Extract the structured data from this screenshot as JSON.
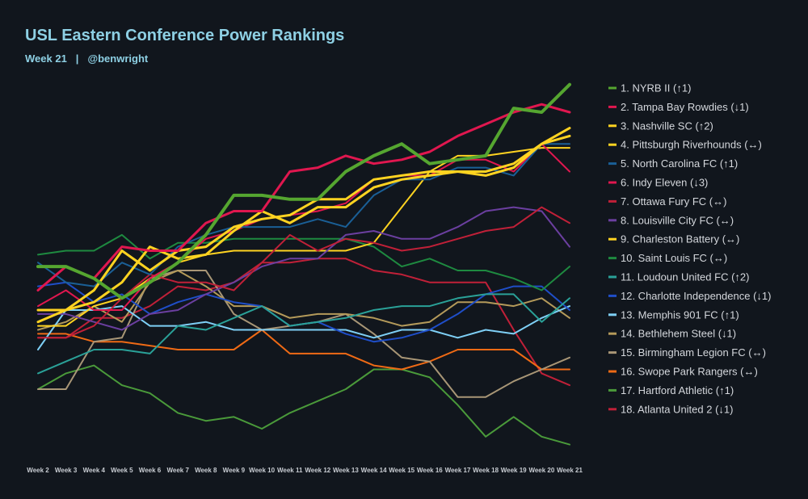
{
  "header": {
    "title": "USL Eastern Conference Power Rankings",
    "week": "Week 21",
    "separator": "|",
    "author": "@benwright"
  },
  "chart_data": {
    "type": "line",
    "title": "USL Eastern Conference Power Rankings",
    "subtitle": "Week 21 | @benwright",
    "xlabel": "",
    "ylabel": "",
    "grid": false,
    "legend_position": "right",
    "categories": [
      "Week 2",
      "Week 3",
      "Week 4",
      "Week 5",
      "Week 6",
      "Week 7",
      "Week 8",
      "Week 9",
      "Week 10",
      "Week 11",
      "Week 12",
      "Week 13",
      "Week 14",
      "Week 15",
      "Week 16",
      "Week 17",
      "Week 18",
      "Week 19",
      "Week 20",
      "Week 21"
    ],
    "ylim": [
      0,
      100
    ],
    "series": [
      {
        "name": "1. NYRB II (↑1)",
        "color": "#55a630",
        "highlight": true,
        "values": [
          51,
          51,
          48,
          43,
          47,
          52,
          59,
          69,
          69,
          68,
          68,
          75,
          79,
          82,
          77,
          78,
          79,
          91,
          90,
          97
        ]
      },
      {
        "name": "2. Tampa Bay Rowdies (↓1)",
        "color": "#e0174f",
        "highlight": true,
        "values": [
          45,
          51,
          48,
          56,
          55,
          55,
          62,
          65,
          65,
          75,
          76,
          79,
          77,
          78,
          80,
          84,
          87,
          90,
          92,
          90
        ]
      },
      {
        "name": "3. Nashville SC (↑2)",
        "color": "#ffd321",
        "highlight": true,
        "values": [
          40,
          40,
          45,
          55,
          50,
          55,
          56,
          61,
          63,
          64,
          68,
          68,
          73,
          74,
          75,
          75,
          75,
          77,
          82,
          86
        ]
      },
      {
        "name": "4. Pittsburgh Riverhounds (↔)",
        "color": "#ffd321",
        "highlight": true,
        "values": [
          37,
          40,
          42,
          47,
          56,
          53,
          54,
          60,
          65,
          62,
          66,
          66,
          71,
          73,
          74,
          75,
          74,
          76,
          82,
          84
        ]
      },
      {
        "name": "5. North Carolina FC (↑1)",
        "color": "#1a5f96",
        "highlight": false,
        "values": [
          52,
          47,
          46,
          52,
          49,
          56,
          59,
          61,
          61,
          61,
          63,
          61,
          69,
          73,
          73,
          76,
          76,
          74,
          82,
          82
        ]
      },
      {
        "name": "6. Indy Eleven (↓3)",
        "color": "#e0174f",
        "highlight": false,
        "values": [
          41,
          45,
          40,
          40,
          48,
          52,
          58,
          60,
          63,
          64,
          65,
          67,
          73,
          74,
          74,
          78,
          78,
          75,
          82,
          75
        ]
      },
      {
        "name": "7. Ottawa Fury FC (↔)",
        "color": "#c02038",
        "highlight": false,
        "values": [
          33,
          33,
          36,
          43,
          49,
          47,
          47,
          45,
          52,
          59,
          55,
          58,
          57,
          55,
          56,
          58,
          60,
          61,
          66,
          62
        ]
      },
      {
        "name": "8. Louisville City FC (↔)",
        "color": "#6b3fa0",
        "highlight": false,
        "values": [
          39,
          39,
          37,
          35,
          39,
          40,
          44,
          47,
          51,
          53,
          53,
          59,
          60,
          58,
          58,
          61,
          65,
          66,
          65,
          56
        ]
      },
      {
        "name": "9. Charleston Battery (↔)",
        "color": "#ffd321",
        "highlight": false,
        "values": [
          36,
          36,
          41,
          43,
          48,
          52,
          54,
          55,
          55,
          55,
          55,
          55,
          57,
          66,
          75,
          79,
          79,
          80,
          81,
          81
        ]
      },
      {
        "name": "10. Saint Louis FC (↔)",
        "color": "#1e8a40",
        "highlight": false,
        "values": [
          54,
          55,
          55,
          59,
          53,
          57,
          57,
          58,
          58,
          58,
          58,
          58,
          56,
          51,
          53,
          50,
          50,
          48,
          45,
          51
        ]
      },
      {
        "name": "11. Loudoun United FC (↑2)",
        "color": "#2aa198",
        "highlight": false,
        "values": [
          24,
          27,
          30,
          30,
          29,
          36,
          35,
          38,
          41,
          36,
          37,
          38,
          40,
          41,
          41,
          43,
          44,
          44,
          37,
          43
        ]
      },
      {
        "name": "12. Charlotte Independence (↓1)",
        "color": "#1f4ec8",
        "highlight": false,
        "values": [
          46,
          47,
          42,
          44,
          39,
          42,
          44,
          42,
          41,
          36,
          37,
          34,
          32,
          33,
          35,
          39,
          44,
          46,
          46,
          40
        ]
      },
      {
        "name": "13. Memphis 901 FC (↑1)",
        "color": "#7ecff5",
        "highlight": false,
        "values": [
          30,
          40,
          40,
          41,
          36,
          36,
          37,
          35,
          35,
          35,
          35,
          35,
          33,
          35,
          35,
          33,
          35,
          34,
          38,
          41
        ]
      },
      {
        "name": "14. Bethlehem Steel (↓1)",
        "color": "#b49a5a",
        "highlight": false,
        "values": [
          35,
          37,
          41,
          37,
          47,
          50,
          46,
          41,
          41,
          38,
          39,
          39,
          38,
          36,
          37,
          42,
          42,
          41,
          43,
          38
        ]
      },
      {
        "name": "15. Birmingham Legion FC (↔)",
        "color": "#a89676",
        "highlight": false,
        "values": [
          20,
          20,
          32,
          33,
          48,
          50,
          50,
          39,
          35,
          36,
          37,
          39,
          34,
          28,
          27,
          18,
          18,
          22,
          25,
          28
        ]
      },
      {
        "name": "16. Swope Park Rangers (↔)",
        "color": "#ef6a15",
        "highlight": false,
        "values": [
          34,
          34,
          32,
          32,
          31,
          30,
          30,
          30,
          35,
          29,
          29,
          29,
          26,
          25,
          27,
          30,
          30,
          30,
          25,
          25
        ]
      },
      {
        "name": "17. Hartford Athletic (↑1)",
        "color": "#4a9a3a",
        "highlight": false,
        "values": [
          20,
          24,
          26,
          21,
          19,
          14,
          12,
          13,
          10,
          14,
          17,
          20,
          25,
          25,
          23,
          16,
          8,
          13,
          8,
          6
        ]
      },
      {
        "name": "18. Atlanta United 2 (↓1)",
        "color": "#c02038",
        "highlight": false,
        "values": [
          33,
          33,
          38,
          38,
          41,
          46,
          45,
          47,
          52,
          52,
          53,
          53,
          50,
          49,
          47,
          47,
          47,
          35,
          24,
          21
        ]
      }
    ]
  }
}
